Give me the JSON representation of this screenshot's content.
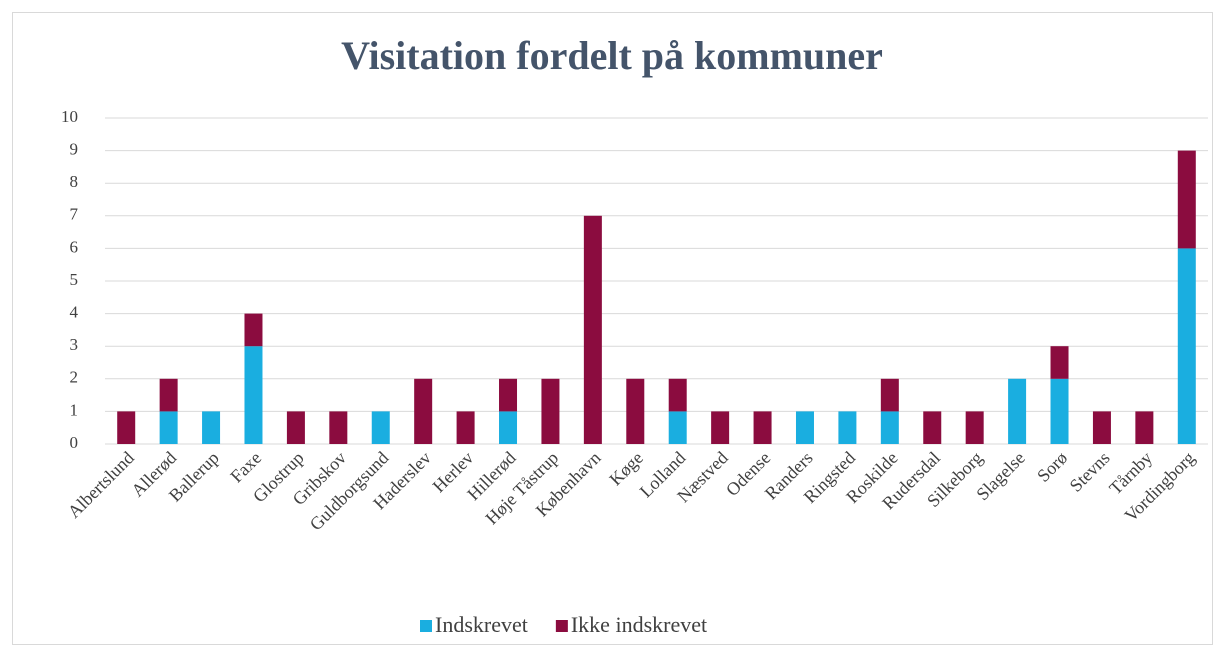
{
  "chart_data": {
    "type": "stacked_bar",
    "title": "Visitation fordelt på kommuner",
    "categories": [
      "Albertslund",
      "Allerød",
      "Ballerup",
      "Faxe",
      "Glostrup",
      "Gribskov",
      "Guldborgsund",
      "Haderslev",
      "Herlev",
      "Hillerød",
      "Høje Tåstrup",
      "København",
      "Køge",
      "Lolland",
      "Næstved",
      "Odense",
      "Randers",
      "Ringsted",
      "Roskilde",
      "Rudersdal",
      "Silkeborg",
      "Slagelse",
      "Sorø",
      "Stevns",
      "Tårnby",
      "Vordingborg"
    ],
    "series": [
      {
        "name": "Indskrevet",
        "color": "#1aaee0",
        "values": [
          0,
          1,
          1,
          3,
          0,
          0,
          1,
          0,
          0,
          1,
          0,
          0,
          0,
          1,
          0,
          0,
          1,
          1,
          1,
          0,
          0,
          2,
          2,
          0,
          0,
          6
        ]
      },
      {
        "name": "Ikke indskrevet",
        "color": "#8b0c3f",
        "values": [
          1,
          1,
          0,
          1,
          1,
          1,
          0,
          2,
          1,
          1,
          2,
          7,
          2,
          1,
          1,
          1,
          0,
          0,
          1,
          1,
          1,
          0,
          1,
          1,
          1,
          3
        ]
      }
    ],
    "ylim": [
      0,
      10
    ],
    "yticks": [
      0,
      1,
      2,
      3,
      4,
      5,
      6,
      7,
      8,
      9,
      10
    ],
    "grid": true,
    "legend": "bottom"
  }
}
